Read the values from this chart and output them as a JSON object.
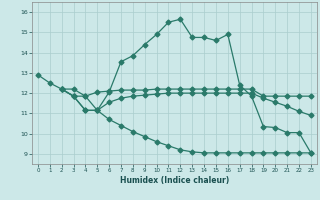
{
  "xlabel": "Humidex (Indice chaleur)",
  "bg_color": "#cce8e8",
  "grid_color": "#aacece",
  "line_color": "#2a7a6a",
  "xlim": [
    -0.5,
    23.5
  ],
  "ylim": [
    8.5,
    16.5
  ],
  "xticks": [
    0,
    1,
    2,
    3,
    4,
    5,
    6,
    7,
    8,
    9,
    10,
    11,
    12,
    13,
    14,
    15,
    16,
    17,
    18,
    19,
    20,
    21,
    22,
    23
  ],
  "yticks": [
    9,
    10,
    11,
    12,
    13,
    14,
    15,
    16
  ],
  "curve1_x": [
    0,
    1,
    2,
    3,
    4,
    5,
    6,
    7,
    8,
    9,
    10,
    11,
    12,
    13,
    14,
    15,
    16,
    17,
    18,
    19,
    20,
    21,
    22,
    23
  ],
  "curve1_y": [
    12.9,
    12.5,
    12.2,
    12.2,
    11.85,
    11.15,
    12.05,
    13.55,
    13.85,
    14.4,
    14.9,
    15.5,
    15.65,
    14.75,
    14.75,
    14.6,
    14.9,
    12.4,
    11.85,
    10.35,
    10.3,
    10.05,
    10.05,
    9.05
  ],
  "curve2_x": [
    2,
    3,
    4,
    5,
    6,
    7,
    8,
    9,
    10,
    11,
    12,
    13,
    14,
    15,
    16,
    17,
    18,
    19,
    20,
    21,
    22,
    23
  ],
  "curve2_y": [
    12.2,
    11.85,
    11.85,
    12.05,
    12.1,
    12.15,
    12.15,
    12.15,
    12.2,
    12.2,
    12.2,
    12.2,
    12.2,
    12.2,
    12.2,
    12.2,
    12.2,
    11.85,
    11.85,
    11.85,
    11.85,
    11.85
  ],
  "curve3_x": [
    2,
    3,
    4,
    5,
    6,
    7,
    8,
    9,
    10,
    11,
    12,
    13,
    14,
    15,
    16,
    17,
    18,
    19,
    20,
    21,
    22,
    23
  ],
  "curve3_y": [
    12.2,
    11.85,
    11.15,
    11.15,
    11.55,
    11.75,
    11.85,
    11.9,
    11.95,
    12.0,
    12.0,
    12.0,
    12.0,
    12.0,
    12.0,
    12.0,
    12.0,
    11.75,
    11.55,
    11.35,
    11.1,
    10.9
  ],
  "curve4_x": [
    2,
    3,
    4,
    5,
    6,
    7,
    8,
    9,
    10,
    11,
    12,
    13,
    14,
    15,
    16,
    17,
    18,
    19,
    20,
    21,
    22,
    23
  ],
  "curve4_y": [
    12.2,
    11.85,
    11.15,
    11.15,
    10.7,
    10.4,
    10.1,
    9.85,
    9.6,
    9.4,
    9.2,
    9.1,
    9.05,
    9.05,
    9.05,
    9.05,
    9.05,
    9.05,
    9.05,
    9.05,
    9.05,
    9.05
  ]
}
